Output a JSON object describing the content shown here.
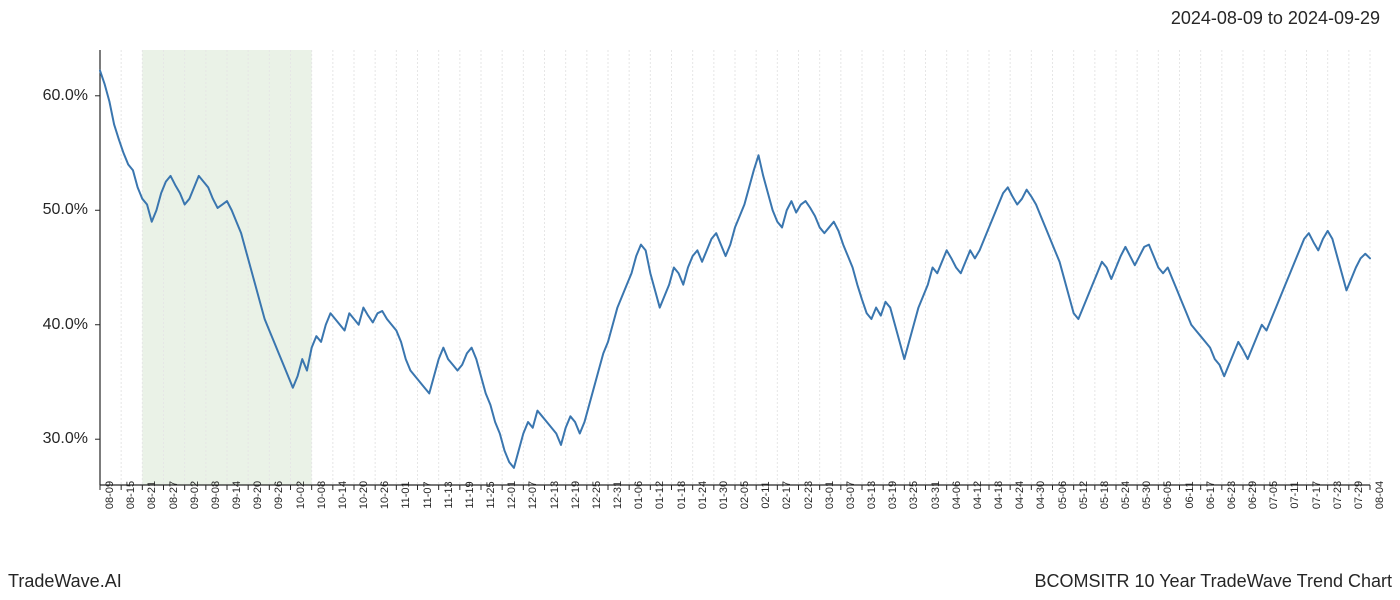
{
  "header": {
    "date_range": "2024-08-09 to 2024-09-29"
  },
  "footer": {
    "brand": "TradeWave.AI",
    "title": "BCOMSITR 10 Year TradeWave Trend Chart"
  },
  "chart": {
    "type": "line",
    "background_color": "#ffffff",
    "line_color": "#3a76af",
    "line_width": 2,
    "axis_color": "#262626",
    "grid_color": "#e6e6e6",
    "highlight_band": {
      "fill": "#d8e8d3",
      "opacity": 0.55,
      "x_start_index": 2,
      "x_end_index": 10
    },
    "y_axis": {
      "ticks": [
        30.0,
        40.0,
        50.0,
        60.0
      ],
      "tick_labels": [
        "30.0%",
        "40.0%",
        "50.0%",
        "60.0%"
      ],
      "min": 26.0,
      "max": 64.0,
      "label_fontsize": 16
    },
    "x_axis": {
      "tick_labels": [
        "08-09",
        "08-15",
        "08-21",
        "08-27",
        "09-02",
        "09-08",
        "09-14",
        "09-20",
        "09-26",
        "10-02",
        "10-08",
        "10-14",
        "10-20",
        "10-26",
        "11-01",
        "11-07",
        "11-13",
        "11-19",
        "11-25",
        "12-01",
        "12-07",
        "12-13",
        "12-19",
        "12-25",
        "12-31",
        "01-06",
        "01-12",
        "01-18",
        "01-24",
        "01-30",
        "02-05",
        "02-11",
        "02-17",
        "02-23",
        "03-01",
        "03-07",
        "03-13",
        "03-19",
        "03-25",
        "03-31",
        "04-06",
        "04-12",
        "04-18",
        "04-24",
        "04-30",
        "05-06",
        "05-12",
        "05-18",
        "05-24",
        "05-30",
        "06-05",
        "06-11",
        "06-17",
        "06-23",
        "06-29",
        "07-05",
        "07-11",
        "07-17",
        "07-23",
        "07-29",
        "08-04"
      ],
      "label_fontsize": 11,
      "rotation": -90
    },
    "series": {
      "values": [
        62.2,
        61.0,
        59.5,
        57.5,
        56.2,
        55.0,
        54.0,
        53.5,
        52.0,
        51.0,
        50.5,
        49.0,
        50.0,
        51.5,
        52.5,
        53.0,
        52.2,
        51.5,
        50.5,
        51.0,
        52.0,
        53.0,
        52.5,
        52.0,
        51.0,
        50.2,
        50.5,
        50.8,
        50.0,
        49.0,
        48.0,
        46.5,
        45.0,
        43.5,
        42.0,
        40.5,
        39.5,
        38.5,
        37.5,
        36.5,
        35.5,
        34.5,
        35.5,
        37.0,
        36.0,
        38.0,
        39.0,
        38.5,
        40.0,
        41.0,
        40.5,
        40.0,
        39.5,
        41.0,
        40.5,
        40.0,
        41.5,
        40.8,
        40.2,
        41.0,
        41.2,
        40.5,
        40.0,
        39.5,
        38.5,
        37.0,
        36.0,
        35.5,
        35.0,
        34.5,
        34.0,
        35.5,
        37.0,
        38.0,
        37.0,
        36.5,
        36.0,
        36.5,
        37.5,
        38.0,
        37.0,
        35.5,
        34.0,
        33.0,
        31.5,
        30.5,
        29.0,
        28.0,
        27.5,
        29.0,
        30.5,
        31.5,
        31.0,
        32.5,
        32.0,
        31.5,
        31.0,
        30.5,
        29.5,
        31.0,
        32.0,
        31.5,
        30.5,
        31.5,
        33.0,
        34.5,
        36.0,
        37.5,
        38.5,
        40.0,
        41.5,
        42.5,
        43.5,
        44.5,
        46.0,
        47.0,
        46.5,
        44.5,
        43.0,
        41.5,
        42.5,
        43.5,
        45.0,
        44.5,
        43.5,
        45.0,
        46.0,
        46.5,
        45.5,
        46.5,
        47.5,
        48.0,
        47.0,
        46.0,
        47.0,
        48.5,
        49.5,
        50.5,
        52.0,
        53.5,
        54.8,
        53.0,
        51.5,
        50.0,
        49.0,
        48.5,
        50.0,
        50.8,
        49.8,
        50.5,
        50.8,
        50.2,
        49.5,
        48.5,
        48.0,
        48.5,
        49.0,
        48.2,
        47.0,
        46.0,
        45.0,
        43.5,
        42.2,
        41.0,
        40.5,
        41.5,
        40.8,
        42.0,
        41.5,
        40.0,
        38.5,
        37.0,
        38.5,
        40.0,
        41.5,
        42.5,
        43.5,
        45.0,
        44.5,
        45.5,
        46.5,
        45.8,
        45.0,
        44.5,
        45.5,
        46.5,
        45.8,
        46.5,
        47.5,
        48.5,
        49.5,
        50.5,
        51.5,
        52.0,
        51.2,
        50.5,
        51.0,
        51.8,
        51.2,
        50.5,
        49.5,
        48.5,
        47.5,
        46.5,
        45.5,
        44.0,
        42.5,
        41.0,
        40.5,
        41.5,
        42.5,
        43.5,
        44.5,
        45.5,
        45.0,
        44.0,
        45.0,
        46.0,
        46.8,
        46.0,
        45.2,
        46.0,
        46.8,
        47.0,
        46.0,
        45.0,
        44.5,
        45.0,
        44.0,
        43.0,
        42.0,
        41.0,
        40.0,
        39.5,
        39.0,
        38.5,
        38.0,
        37.0,
        36.5,
        35.5,
        36.5,
        37.5,
        38.5,
        37.8,
        37.0,
        38.0,
        39.0,
        40.0,
        39.5,
        40.5,
        41.5,
        42.5,
        43.5,
        44.5,
        45.5,
        46.5,
        47.5,
        48.0,
        47.2,
        46.5,
        47.5,
        48.2,
        47.5,
        46.0,
        44.5,
        43.0,
        44.0,
        45.0,
        45.8,
        46.2,
        45.8
      ]
    }
  }
}
